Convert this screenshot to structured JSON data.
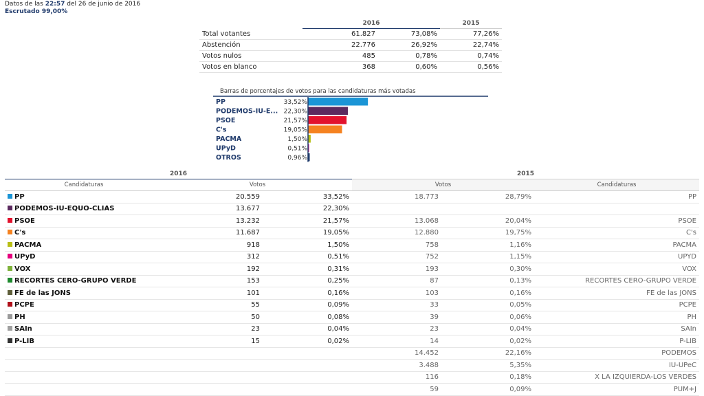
{
  "header": {
    "datos_label": "Datos de las",
    "time": "22:57",
    "date_text": "del 26 de junio de 2016",
    "status": "Escrutado 99,00%"
  },
  "summary": {
    "year_2016": "2016",
    "year_2015": "2015",
    "rows": [
      {
        "label": "Total votantes",
        "count": "61.827",
        "pct2016": "73,08%",
        "pct2015": "77,26%"
      },
      {
        "label": "Abstención",
        "count": "22.776",
        "pct2016": "26,92%",
        "pct2015": "22,74%"
      },
      {
        "label": "Votos nulos",
        "count": "485",
        "pct2016": "0,78%",
        "pct2015": "0,74%"
      },
      {
        "label": "Votos en blanco",
        "count": "368",
        "pct2016": "0,60%",
        "pct2015": "0,56%"
      }
    ]
  },
  "chart_data": {
    "type": "bar",
    "title": "Barras de porcentajes de votos para las candidaturas más votadas",
    "categories": [
      "PP",
      "PODEMOS-IU-E...",
      "PSOE",
      "C's",
      "PACMA",
      "UPyD",
      "OTROS"
    ],
    "values": [
      33.52,
      22.3,
      21.57,
      19.05,
      1.5,
      0.51,
      0.96
    ],
    "value_labels": [
      "33,52%",
      "22,30%",
      "21,57%",
      "19,05%",
      "1,50%",
      "0,51%",
      "0,96%"
    ],
    "colors": [
      "#1b95d6",
      "#5b2a5f",
      "#e2122d",
      "#f58220",
      "#b8be14",
      "#e5007d",
      "#1f3a6b"
    ],
    "orientation": "horizontal",
    "xlim": [
      0,
      100
    ]
  },
  "detail": {
    "year_2016": "2016",
    "year_2015": "2015",
    "col_candidaturas": "Candidaturas",
    "col_votos": "Votos",
    "rows": [
      {
        "name": "PP",
        "color": "#1b95d6",
        "votes": "20.559",
        "pct": "33,52%",
        "votes15": "18.773",
        "pct15": "28,79%",
        "name15": "PP"
      },
      {
        "name": "PODEMOS-IU-EQUO-CLIAS",
        "color": "#5b2a5f",
        "votes": "13.677",
        "pct": "22,30%",
        "votes15": "",
        "pct15": "",
        "name15": ""
      },
      {
        "name": "PSOE",
        "color": "#e2122d",
        "votes": "13.232",
        "pct": "21,57%",
        "votes15": "13.068",
        "pct15": "20,04%",
        "name15": "PSOE"
      },
      {
        "name": "C's",
        "color": "#f58220",
        "votes": "11.687",
        "pct": "19,05%",
        "votes15": "12.880",
        "pct15": "19,75%",
        "name15": "C's"
      },
      {
        "name": "PACMA",
        "color": "#b8be14",
        "votes": "918",
        "pct": "1,50%",
        "votes15": "758",
        "pct15": "1,16%",
        "name15": "PACMA"
      },
      {
        "name": "UPyD",
        "color": "#e5007d",
        "votes": "312",
        "pct": "0,51%",
        "votes15": "752",
        "pct15": "1,15%",
        "name15": "UPYD"
      },
      {
        "name": "VOX",
        "color": "#7fb23a",
        "votes": "192",
        "pct": "0,31%",
        "votes15": "193",
        "pct15": "0,30%",
        "name15": "VOX"
      },
      {
        "name": "RECORTES CERO-GRUPO VERDE",
        "color": "#1e8a2e",
        "votes": "153",
        "pct": "0,25%",
        "votes15": "87",
        "pct15": "0,13%",
        "name15": "RECORTES CERO-GRUPO VERDE"
      },
      {
        "name": "FE de las JONS",
        "color": "#5e5e3a",
        "votes": "101",
        "pct": "0,16%",
        "votes15": "103",
        "pct15": "0,16%",
        "name15": "FE de las JONS"
      },
      {
        "name": "PCPE",
        "color": "#b0101a",
        "votes": "55",
        "pct": "0,09%",
        "votes15": "33",
        "pct15": "0,05%",
        "name15": "PCPE"
      },
      {
        "name": "PH",
        "color": "#9a9a9a",
        "votes": "50",
        "pct": "0,08%",
        "votes15": "39",
        "pct15": "0,06%",
        "name15": "PH"
      },
      {
        "name": "SAIn",
        "color": "#a0a0a0",
        "votes": "23",
        "pct": "0,04%",
        "votes15": "23",
        "pct15": "0,04%",
        "name15": "SAIn"
      },
      {
        "name": "P-LIB",
        "color": "#333333",
        "votes": "15",
        "pct": "0,02%",
        "votes15": "14",
        "pct15": "0,02%",
        "name15": "P-LIB"
      },
      {
        "name": "",
        "color": "",
        "votes": "",
        "pct": "",
        "votes15": "14.452",
        "pct15": "22,16%",
        "name15": "PODEMOS"
      },
      {
        "name": "",
        "color": "",
        "votes": "",
        "pct": "",
        "votes15": "3.488",
        "pct15": "5,35%",
        "name15": "IU-UPeC"
      },
      {
        "name": "",
        "color": "",
        "votes": "",
        "pct": "",
        "votes15": "116",
        "pct15": "0,18%",
        "name15": "X LA IZQUIERDA-LOS VERDES"
      },
      {
        "name": "",
        "color": "",
        "votes": "",
        "pct": "",
        "votes15": "59",
        "pct15": "0,09%",
        "name15": "PUM+J"
      }
    ]
  }
}
